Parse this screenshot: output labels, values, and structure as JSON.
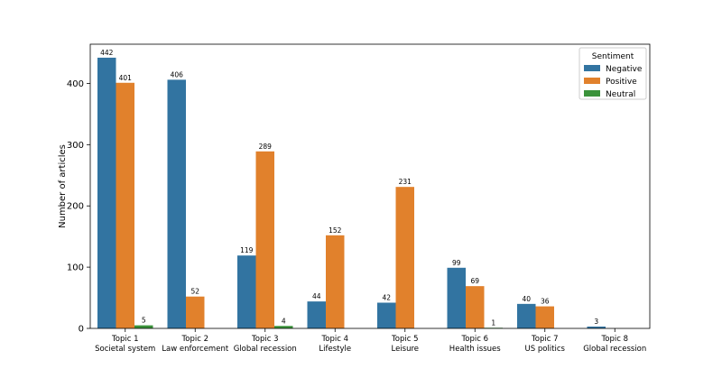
{
  "chart_data": {
    "type": "bar",
    "title": "",
    "xlabel": "",
    "ylabel": "Number of articles",
    "ylim": [
      0,
      464
    ],
    "yticks": [
      0,
      100,
      200,
      300,
      400
    ],
    "grid": false,
    "categories": [
      [
        "Topic 1",
        "Societal system"
      ],
      [
        "Topic 2",
        "Law enforcement"
      ],
      [
        "Topic 3",
        "Global recession"
      ],
      [
        "Topic 4",
        "Lifestyle"
      ],
      [
        "Topic 5",
        "Leisure"
      ],
      [
        "Topic 6",
        "Health issues"
      ],
      [
        "Topic 7",
        "US politics"
      ],
      [
        "Topic 8",
        "Global recession"
      ]
    ],
    "series": [
      {
        "name": "Negative",
        "color": "#3274a1",
        "values": [
          442,
          406,
          119,
          44,
          42,
          99,
          40,
          3
        ]
      },
      {
        "name": "Positive",
        "color": "#e1812c",
        "values": [
          401,
          52,
          289,
          152,
          231,
          69,
          36,
          null
        ]
      },
      {
        "name": "Neutral",
        "color": "#3a923a",
        "values": [
          5,
          null,
          4,
          null,
          null,
          1,
          null,
          null
        ]
      }
    ],
    "legend": {
      "title": "Sentiment",
      "position": "top-right"
    }
  }
}
